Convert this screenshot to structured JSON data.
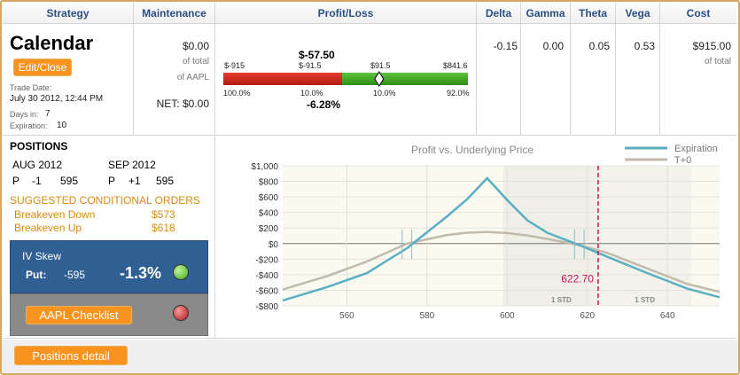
{
  "headers": {
    "strategy": "Strategy",
    "maintenance": "Maintenance",
    "profit_loss": "Profit/Loss",
    "delta": "Delta",
    "gamma": "Gamma",
    "theta": "Theta",
    "vega": "Vega",
    "cost": "Cost"
  },
  "strategy": {
    "name": "Calendar",
    "edit_close_label": "Edit/Close",
    "trade_date_label": "Trade Date:",
    "trade_date": "July 30 2012, 12:44 PM",
    "days_in_label": "Days in:",
    "days_in": "7",
    "expiration_label": "Expiration:",
    "expiration": "10"
  },
  "maintenance": {
    "amount": "$0.00",
    "of_total": "of total",
    "of_aapl": "of AAPL",
    "net": "NET: $0.00"
  },
  "profit_loss": {
    "value": "$-57.50",
    "percent": "-6.28%",
    "min": "$-915",
    "low": "$-91.5",
    "high": "$91.5",
    "max": "$841.6",
    "pct_left": "100.0%",
    "pct_mid_left": "10.0%",
    "pct_mid_right": "10.0%",
    "pct_right": "92.0%",
    "marker_fraction": 0.637
  },
  "greeks": {
    "delta": "-0.15",
    "gamma": "0.00",
    "theta": "0.05",
    "vega": "0.53"
  },
  "cost": {
    "amount": "$915.00",
    "of_total": "of total"
  },
  "positions": {
    "title": "POSITIONS",
    "months": [
      "AUG 2012",
      "SEP 2012"
    ],
    "legs": [
      {
        "type": "P",
        "qty": "-1",
        "strike": "595"
      },
      {
        "type": "P",
        "qty": "+1",
        "strike": "595"
      }
    ],
    "suggested_title": "SUGGESTED CONDITIONAL ORDERS",
    "orders": [
      {
        "label": "Breakeven Down",
        "value": "$573"
      },
      {
        "label": "Breakeven Up",
        "value": "$618"
      }
    ]
  },
  "iv_skew": {
    "title": "IV Skew",
    "put_label": "Put:",
    "strike": "-595",
    "value": "-1.3%",
    "indicator_color": "#3fae1f"
  },
  "checklist": {
    "label": "AAPL Checklist",
    "indicator_color": "#b8141a"
  },
  "footer": {
    "positions_detail_label": "Positions detail"
  },
  "colors": {
    "accent_orange": "#f7931e",
    "header_blue": "#2a4f86",
    "expiration_line": "#5aafc2",
    "t0_line": "#c2bbac",
    "current_price": "#c0145a"
  },
  "chart_data": {
    "type": "line",
    "title": "Profit vs. Underlying Price",
    "xlabel": "",
    "ylabel": "",
    "xlim": [
      544,
      653
    ],
    "ylim": [
      -800,
      1000
    ],
    "x_ticks": [
      560,
      580,
      600,
      620,
      640
    ],
    "y_ticks": [
      -800,
      -600,
      -400,
      -200,
      0,
      200,
      400,
      600,
      800,
      1000
    ],
    "y_tick_labels": [
      "-$800",
      "-$600",
      "-$400",
      "-$200",
      "$0",
      "$200",
      "$400",
      "$600",
      "$800",
      "$1,000"
    ],
    "current_price": 622.7,
    "current_price_label": "622.70",
    "std_bands": [
      {
        "label": "1 STD",
        "from": 599,
        "to": 622.7
      },
      {
        "label": "1 STD",
        "from": 622.7,
        "to": 646
      }
    ],
    "grid": true,
    "legend_position": "top-right",
    "series": [
      {
        "name": "Expiration",
        "color": "#5aafc2",
        "x": [
          544,
          555,
          565,
          575,
          585,
          590,
          595,
          600,
          605,
          610,
          618,
          625,
          635,
          645,
          653
        ],
        "y": [
          -730,
          -560,
          -380,
          -60,
          350,
          570,
          840,
          560,
          300,
          140,
          -20,
          -170,
          -380,
          -580,
          -690
        ]
      },
      {
        "name": "T+0",
        "color": "#c2bbac",
        "x": [
          544,
          555,
          565,
          575,
          585,
          590,
          595,
          600,
          605,
          610,
          618,
          625,
          635,
          645,
          653
        ],
        "y": [
          -590,
          -420,
          -230,
          0,
          110,
          140,
          150,
          135,
          105,
          60,
          -20,
          -120,
          -320,
          -520,
          -620
        ]
      }
    ]
  }
}
